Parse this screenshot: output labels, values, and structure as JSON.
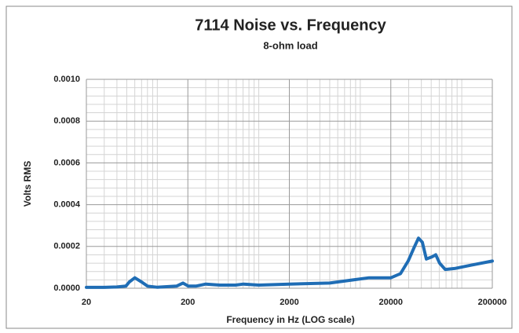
{
  "chart_data": {
    "type": "line",
    "title": "7114 Noise vs. Frequency",
    "subtitle": "8-ohm load",
    "x_label": "Frequency in Hz (LOG scale)",
    "y_label": "Volts RMS",
    "x_log": true,
    "grid": true,
    "xlim": [
      20,
      200000
    ],
    "xticks": [
      20,
      200,
      2000,
      20000,
      200000
    ],
    "ylim": [
      0,
      0.001
    ],
    "yticks": [
      {
        "value": 0,
        "label": "0.0000"
      },
      {
        "value": 0.0002,
        "label": "0.0002"
      },
      {
        "value": 0.0004,
        "label": "0.0004"
      },
      {
        "value": 0.0006,
        "label": "0.0006"
      },
      {
        "value": 0.0008,
        "label": "0.0008"
      },
      {
        "value": 0.001,
        "label": "0.0010"
      }
    ],
    "x": [
      20,
      30,
      40,
      49,
      53,
      60,
      70,
      80,
      99,
      155,
      179,
      202,
      240,
      300,
      413,
      590,
      705,
      1000,
      2000,
      5000,
      8500,
      12200,
      20000,
      24900,
      29600,
      34300,
      37500,
      40900,
      44800,
      50700,
      55500,
      60500,
      68700,
      86600,
      123000,
      200000
    ],
    "series": [
      {
        "name": "Volts RMS",
        "color": "#1f6db5",
        "values": [
          4e-06,
          4e-06,
          6e-06,
          1e-05,
          3e-05,
          5e-05,
          3e-05,
          1e-05,
          5e-06,
          1e-05,
          2.5e-05,
          1e-05,
          1e-05,
          2e-05,
          1.5e-05,
          1.5e-05,
          2e-05,
          1.5e-05,
          2e-05,
          2.5e-05,
          4e-05,
          5e-05,
          5e-05,
          7e-05,
          0.00013,
          0.0002,
          0.00024,
          0.00022,
          0.00014,
          0.00015,
          0.00016,
          0.00012,
          9e-05,
          9.5e-05,
          0.00011,
          0.00013
        ]
      }
    ]
  }
}
